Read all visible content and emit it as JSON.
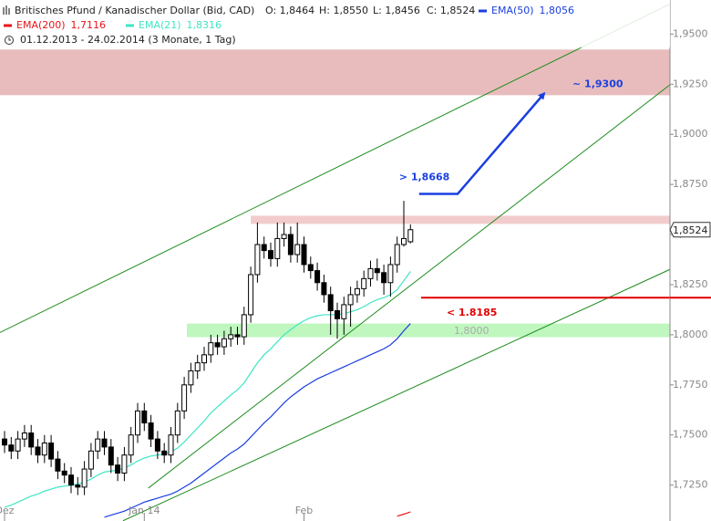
{
  "chart_data": {
    "type": "candlestick",
    "title": "Britisches Pfund / Kanadischer Dollar (Bid, CAD)",
    "quote": {
      "open": "O: 1,8464",
      "high": "H: 1,8550",
      "low": "L: 1,8456",
      "close": "C: 1,8524"
    },
    "period": "01.12.2013 - 24.02.2014 (3 Monate, 1 Tag)",
    "categories": [
      "Dez",
      null,
      null,
      null,
      null,
      null,
      null,
      null,
      null,
      null,
      null,
      null,
      null,
      null,
      null,
      null,
      null,
      null,
      null,
      null,
      null,
      "Jan 14",
      null,
      null,
      null,
      null,
      null,
      null,
      null,
      null,
      null,
      null,
      null,
      null,
      null,
      null,
      null,
      null,
      null,
      null,
      null,
      null,
      null,
      null,
      null,
      "Feb",
      null,
      null,
      null,
      null,
      null,
      null,
      null,
      null,
      null,
      null,
      null,
      null,
      null,
      null,
      null,
      null
    ],
    "open": [
      1.748,
      1.745,
      1.742,
      1.748,
      1.751,
      1.744,
      1.74,
      1.746,
      1.738,
      1.732,
      1.73,
      1.725,
      1.724,
      1.733,
      1.742,
      1.748,
      1.744,
      1.735,
      1.731,
      1.74,
      1.75,
      1.762,
      1.756,
      1.748,
      1.742,
      1.74,
      1.75,
      1.762,
      1.775,
      1.782,
      1.786,
      1.79,
      1.796,
      1.794,
      1.798,
      1.8,
      1.799,
      1.81,
      1.83,
      1.845,
      1.842,
      1.838,
      1.848,
      1.85,
      1.84,
      1.845,
      1.835,
      1.832,
      1.826,
      1.82,
      1.812,
      1.808,
      1.815,
      1.82,
      1.823,
      1.828,
      1.833,
      1.831,
      1.826,
      1.835,
      1.845,
      1.8464
    ],
    "high": [
      1.752,
      1.749,
      1.752,
      1.755,
      1.755,
      1.748,
      1.75,
      1.75,
      1.742,
      1.736,
      1.734,
      1.729,
      1.737,
      1.746,
      1.752,
      1.752,
      1.748,
      1.739,
      1.744,
      1.754,
      1.766,
      1.766,
      1.76,
      1.752,
      1.746,
      1.754,
      1.766,
      1.779,
      1.786,
      1.79,
      1.794,
      1.8,
      1.8,
      1.802,
      1.804,
      1.804,
      1.814,
      1.834,
      1.856,
      1.849,
      1.846,
      1.856,
      1.856,
      1.854,
      1.856,
      1.849,
      1.839,
      1.836,
      1.83,
      1.824,
      1.816,
      1.819,
      1.824,
      1.827,
      1.832,
      1.837,
      1.838,
      1.835,
      1.839,
      1.849,
      1.8668,
      1.855
    ],
    "low": [
      1.741,
      1.738,
      1.738,
      1.744,
      1.74,
      1.736,
      1.736,
      1.734,
      1.728,
      1.726,
      1.721,
      1.72,
      1.72,
      1.729,
      1.738,
      1.74,
      1.731,
      1.727,
      1.727,
      1.736,
      1.746,
      1.752,
      1.744,
      1.738,
      1.736,
      1.736,
      1.746,
      1.758,
      1.771,
      1.778,
      1.782,
      1.786,
      1.79,
      1.79,
      1.794,
      1.795,
      1.795,
      1.806,
      1.826,
      1.838,
      1.834,
      1.834,
      1.844,
      1.836,
      1.836,
      1.831,
      1.828,
      1.822,
      1.816,
      1.8,
      1.798,
      1.8,
      1.804,
      1.816,
      1.819,
      1.824,
      1.827,
      1.82,
      1.819,
      1.831,
      1.844,
      1.8456
    ],
    "close": [
      1.745,
      1.742,
      1.748,
      1.751,
      1.744,
      1.74,
      1.746,
      1.738,
      1.732,
      1.73,
      1.725,
      1.724,
      1.733,
      1.742,
      1.748,
      1.744,
      1.735,
      1.731,
      1.74,
      1.75,
      1.762,
      1.756,
      1.748,
      1.742,
      1.74,
      1.75,
      1.762,
      1.775,
      1.782,
      1.786,
      1.79,
      1.796,
      1.794,
      1.798,
      1.8,
      1.799,
      1.81,
      1.83,
      1.845,
      1.842,
      1.838,
      1.848,
      1.85,
      1.84,
      1.845,
      1.835,
      1.832,
      1.826,
      1.82,
      1.812,
      1.808,
      1.815,
      1.82,
      1.823,
      1.828,
      1.833,
      1.831,
      1.826,
      1.835,
      1.845,
      1.848,
      1.8524
    ],
    "last_label": "1,8524",
    "indicators": [
      {
        "name": "EMA(200)",
        "label": "1,7116",
        "color": "#e8141a",
        "values": [
          null,
          null,
          null,
          null,
          null,
          null,
          null,
          null,
          null,
          null,
          null,
          null,
          null,
          null,
          null,
          null,
          null,
          null,
          null,
          null,
          null,
          null,
          null,
          null,
          null,
          null,
          null,
          null,
          null,
          null,
          null,
          null,
          null,
          null,
          null,
          null,
          null,
          null,
          null,
          null,
          null,
          null,
          null,
          null,
          null,
          null,
          null,
          null,
          null,
          null,
          null,
          null,
          null,
          null,
          null,
          null,
          null,
          null,
          null,
          1.7095,
          1.7105,
          1.7116
        ]
      },
      {
        "name": "EMA(21)",
        "label": "1,8316",
        "color": "#3ee6c4",
        "values": [
          1.714,
          1.715,
          1.7165,
          1.718,
          1.7195,
          1.7205,
          1.722,
          1.723,
          1.724,
          1.7245,
          1.725,
          1.7255,
          1.7265,
          1.728,
          1.73,
          1.7315,
          1.732,
          1.7325,
          1.7335,
          1.735,
          1.737,
          1.7385,
          1.7395,
          1.74,
          1.7405,
          1.7415,
          1.7435,
          1.7465,
          1.75,
          1.7535,
          1.757,
          1.761,
          1.764,
          1.767,
          1.77,
          1.7725,
          1.776,
          1.781,
          1.786,
          1.79,
          1.793,
          1.7965,
          1.8,
          1.8025,
          1.805,
          1.807,
          1.8085,
          1.8095,
          1.81,
          1.81,
          1.81,
          1.8105,
          1.8115,
          1.8125,
          1.814,
          1.816,
          1.8175,
          1.8185,
          1.82,
          1.8225,
          1.827,
          1.8316
        ]
      },
      {
        "name": "EMA(50)",
        "label": "1,8056",
        "color": "#1a3fe0",
        "values": [
          null,
          null,
          null,
          null,
          null,
          null,
          null,
          null,
          null,
          null,
          null,
          null,
          null,
          null,
          null,
          1.709,
          1.71,
          1.711,
          1.712,
          1.7135,
          1.715,
          1.7165,
          1.7175,
          1.7185,
          1.7195,
          1.7205,
          1.722,
          1.724,
          1.726,
          1.7285,
          1.731,
          1.7335,
          1.736,
          1.7385,
          1.741,
          1.743,
          1.7455,
          1.749,
          1.7525,
          1.756,
          1.759,
          1.7625,
          1.766,
          1.769,
          1.7715,
          1.774,
          1.776,
          1.778,
          1.7795,
          1.781,
          1.7825,
          1.784,
          1.7855,
          1.787,
          1.7885,
          1.79,
          1.7915,
          1.793,
          1.795,
          1.798,
          1.802,
          1.8056
        ]
      }
    ],
    "ylim": [
      1.708,
      1.967
    ],
    "yticks": [
      {
        "value": 1.95,
        "label": "1,9500"
      },
      {
        "value": 1.925,
        "label": "1,9250"
      },
      {
        "value": 1.9,
        "label": "1,9000"
      },
      {
        "value": 1.875,
        "label": "1,8750"
      },
      {
        "value": 1.85,
        "label": "1,8500"
      },
      {
        "value": 1.825,
        "label": "1,8250"
      },
      {
        "value": 1.8,
        "label": "1,8000"
      },
      {
        "value": 1.775,
        "label": "1,7750"
      },
      {
        "value": 1.75,
        "label": "1,7500"
      },
      {
        "value": 1.725,
        "label": "1,7250"
      }
    ],
    "zones": [
      {
        "start": -0.7,
        "from": 1.9195,
        "to": 1.9423,
        "color": "#e8bcbc"
      },
      {
        "start": 37,
        "from": 1.8553,
        "to": 1.8594,
        "color": "#f2cccc"
      },
      {
        "start": 27.4,
        "from": 1.7988,
        "to": 1.8056,
        "color": "#bff7bf",
        "label": "1,8000"
      }
    ],
    "trendlines": [
      {
        "color": "#1e8c1e",
        "start": [
          -0.7,
          1.8011
        ],
        "end": [
          100,
          1.965
        ]
      },
      {
        "color": "#1e8c1e",
        "start": [
          21.6,
          1.7235
        ],
        "end": [
          100,
          1.9247
        ]
      },
      {
        "color": "#1e8c1e",
        "start": [
          17.8,
          1.7072
        ],
        "end": [
          100,
          1.8326
        ]
      }
    ],
    "support_line": {
      "start": 62.6,
      "level": 1.8185,
      "color": "#e00000",
      "label": "< 1.8185"
    },
    "target_arrow": {
      "color": "#1a3fe0",
      "points": [
        [
          62.3,
          1.8703
        ],
        [
          68.1,
          1.8703
        ],
        [
          81.1,
          1.9204
        ]
      ],
      "label_start": "> 1,8668",
      "label_end": "~ 1,9300"
    }
  }
}
